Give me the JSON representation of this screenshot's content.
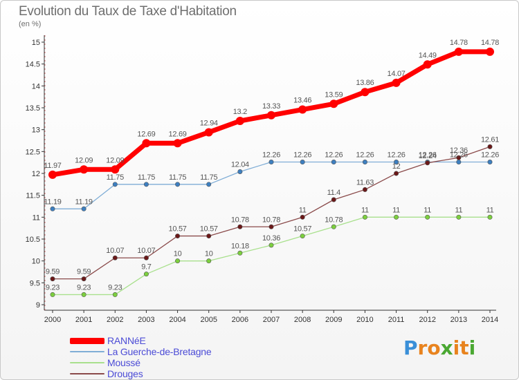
{
  "chart_data": {
    "type": "line",
    "title": "Evolution du Taux de Taxe d'Habitation",
    "ylabel": "(en %)",
    "xlabel": "",
    "x": [
      "2000",
      "2001",
      "2002",
      "2003",
      "2004",
      "2005",
      "2006",
      "2007",
      "2008",
      "2009",
      "2010",
      "2011",
      "2012",
      "2013",
      "2014"
    ],
    "ylim": [
      9,
      15
    ],
    "yticks": [
      "9",
      "9.5",
      "10",
      "10.5",
      "11",
      "11.5",
      "12",
      "12.5",
      "13",
      "13.5",
      "14",
      "14.5",
      "15"
    ],
    "grid": false,
    "legend_position": "bottom-left",
    "series": [
      {
        "name": "RANNéE",
        "color": "#ff0000",
        "values": [
          11.97,
          12.09,
          12.09,
          12.69,
          12.69,
          12.94,
          13.2,
          13.33,
          13.46,
          13.59,
          13.86,
          14.07,
          14.49,
          14.78,
          14.78
        ]
      },
      {
        "name": "La Guerche-de-Bretagne",
        "color": "#7fadd6",
        "values": [
          11.19,
          11.19,
          11.75,
          11.75,
          11.75,
          11.75,
          12.04,
          12.26,
          12.26,
          12.26,
          12.26,
          12.26,
          12.26,
          12.26,
          12.26
        ]
      },
      {
        "name": "Moussé",
        "color": "#a8e08c",
        "values": [
          9.23,
          9.23,
          9.23,
          9.7,
          10,
          10,
          10.18,
          10.36,
          10.57,
          10.78,
          11,
          11,
          11,
          11,
          11
        ]
      },
      {
        "name": "Drouges",
        "color": "#8a4a4a",
        "values": [
          9.59,
          9.59,
          10.07,
          10.07,
          10.57,
          10.57,
          10.78,
          10.78,
          11,
          11.4,
          11.63,
          12,
          12.24,
          12.36,
          12.61
        ]
      }
    ]
  },
  "legend": [
    "RANNéE",
    "La Guerche-de-Bretagne",
    "Moussé",
    "Drouges"
  ],
  "brand": {
    "letters": [
      "P",
      "r",
      "o",
      "x",
      "i",
      "t",
      "i"
    ],
    "colors": [
      "#3a8fd8",
      "#e8831e",
      "#e8831e",
      "#4aa832",
      "#e8831e",
      "#e8831e",
      "#4aa832"
    ]
  }
}
